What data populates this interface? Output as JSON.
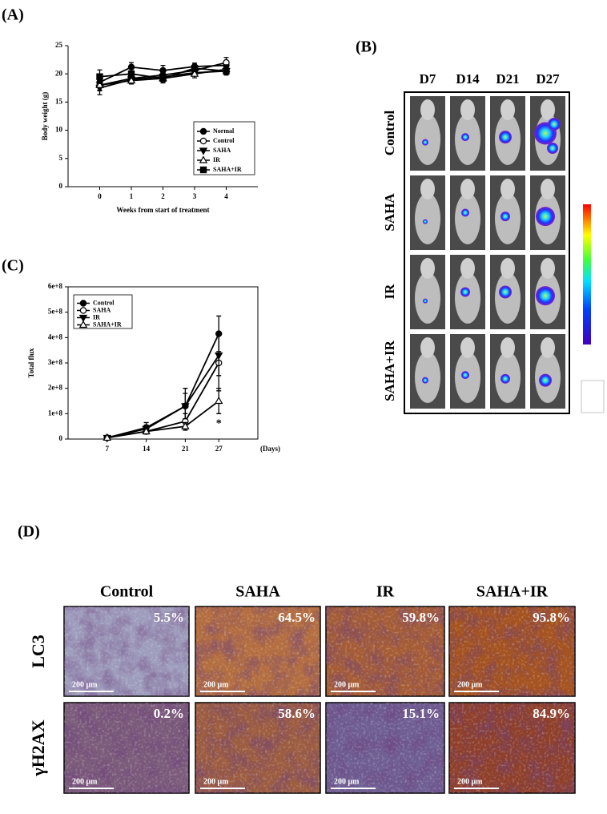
{
  "panel_labels": [
    "(A)",
    "(B)",
    "(C)",
    "(D)"
  ],
  "chart_data": [
    {
      "type": "line",
      "ylabel": "Body weight (g)",
      "xlabel": "Weeks from start of treatment",
      "x": [
        0,
        1,
        2,
        3,
        4
      ],
      "xlim": [
        -1,
        5
      ],
      "xticks": [
        0,
        1,
        2,
        3,
        4
      ],
      "ylim": [
        0,
        25
      ],
      "yticks": [
        0,
        5,
        10,
        15,
        20,
        25
      ],
      "legend": "lower right",
      "series": [
        {
          "name": "Normal",
          "marker": "circle-filled",
          "color": "#000000",
          "values": [
            18.5,
            21.2,
            20.6,
            21.3,
            21.5
          ],
          "errors": [
            1,
            0.8,
            0.9,
            0.6,
            0.8
          ]
        },
        {
          "name": "Control",
          "marker": "circle-open",
          "color": "#000000",
          "values": [
            18,
            19.2,
            19.8,
            20.6,
            22
          ],
          "errors": [
            1,
            0.7,
            0.6,
            0.6,
            0.9
          ]
        },
        {
          "name": "SAHA",
          "marker": "triangle-down-filled",
          "color": "#000000",
          "values": [
            17.5,
            19,
            19.5,
            20.2,
            20.5
          ],
          "errors": [
            1.2,
            0.6,
            0.7,
            0.6,
            0.7
          ]
        },
        {
          "name": "IR",
          "marker": "triangle-up-open",
          "color": "#000000",
          "values": [
            18,
            18.8,
            19.2,
            20,
            20.8
          ],
          "errors": [
            0.9,
            0.6,
            0.6,
            0.7,
            0.8
          ]
        },
        {
          "name": "SAHA+IR",
          "marker": "square-filled",
          "color": "#000000",
          "values": [
            19.5,
            20,
            19.2,
            21,
            20.5
          ],
          "errors": [
            1.2,
            0.8,
            0.8,
            0.6,
            0.7
          ]
        }
      ]
    },
    {
      "type": "line",
      "ylabel": "Total flux",
      "xlabel": "(Days)",
      "x": [
        7,
        14,
        21,
        27
      ],
      "xlim": [
        0,
        34
      ],
      "xticks": [
        7,
        14,
        21,
        27
      ],
      "ylim": [
        0,
        600000000
      ],
      "yticks": [
        0,
        {
          "value": 100000000,
          "label": "1e+8"
        },
        {
          "value": 200000000,
          "label": "2e+8"
        },
        {
          "value": 300000000,
          "label": "3e+8"
        },
        {
          "value": 400000000,
          "label": "4e+8"
        },
        {
          "value": 500000000,
          "label": "5e+8"
        },
        {
          "value": 600000000,
          "label": "6e+8"
        }
      ],
      "legend": "upper left",
      "annotation": "*",
      "series": [
        {
          "name": "Control",
          "marker": "circle-filled",
          "color": "#000000",
          "values": [
            5000000,
            45000000,
            130000000,
            415000000
          ],
          "errors": [
            3000000,
            20000000,
            70000000,
            70000000
          ]
        },
        {
          "name": "SAHA",
          "marker": "circle-open",
          "color": "#000000",
          "values": [
            5000000,
            30000000,
            70000000,
            300000000
          ],
          "errors": [
            3000000,
            10000000,
            30000000,
            110000000
          ]
        },
        {
          "name": "IR",
          "marker": "triangle-down-filled",
          "color": "#000000",
          "values": [
            5000000,
            40000000,
            130000000,
            330000000
          ],
          "errors": [
            3000000,
            15000000,
            50000000,
            80000000
          ]
        },
        {
          "name": "SAHA+IR",
          "marker": "triangle-up-open",
          "color": "#000000",
          "values": [
            5000000,
            30000000,
            50000000,
            150000000
          ],
          "errors": [
            3000000,
            8000000,
            15000000,
            50000000
          ]
        }
      ]
    }
  ],
  "imaging": {
    "columns": [
      "D7",
      "D14",
      "D21",
      "D27"
    ],
    "rows": [
      "Control",
      "SAHA",
      "IR",
      "SAHA+IR"
    ]
  },
  "histology": {
    "columns": [
      "Control",
      "SAHA",
      "IR",
      "SAHA+IR"
    ],
    "rows": [
      "LC3",
      "γH2AX"
    ],
    "percentages": [
      [
        "5.5%",
        "64.5%",
        "59.8%",
        "95.8%"
      ],
      [
        "0.2%",
        "58.6%",
        "15.1%",
        "84.9%"
      ]
    ],
    "scale_bar": "200 μm"
  }
}
